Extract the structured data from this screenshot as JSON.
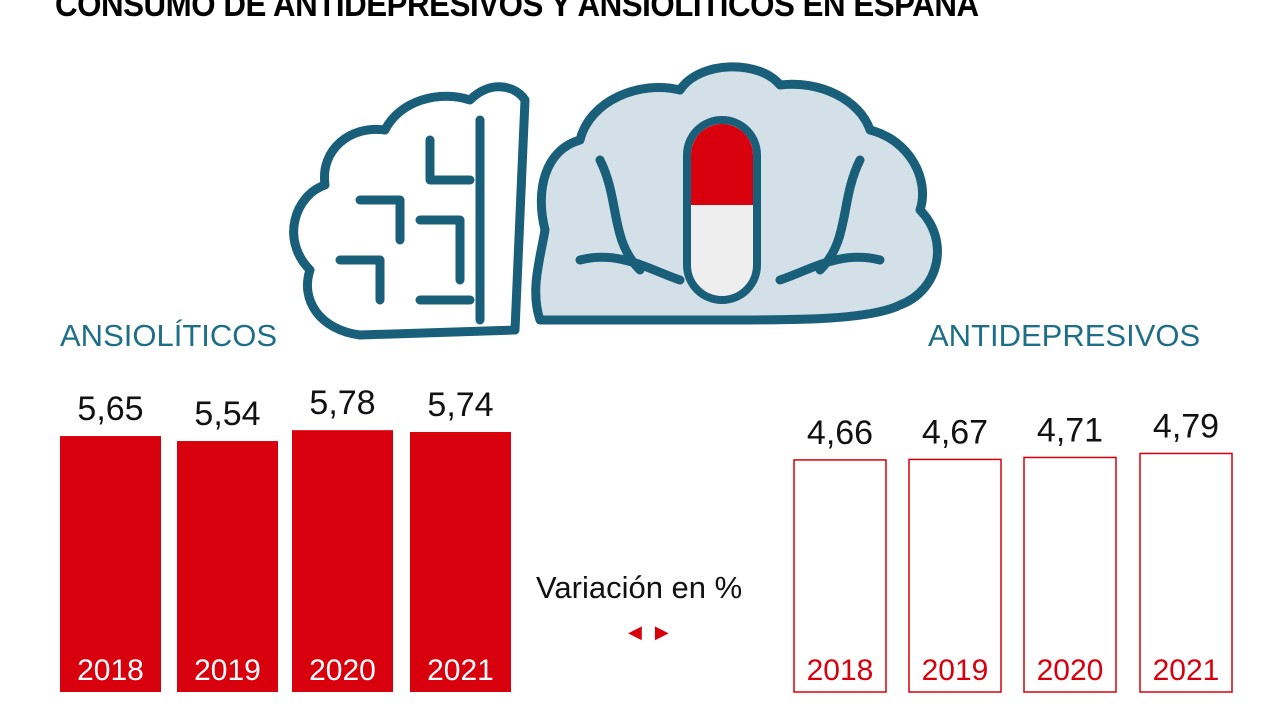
{
  "title": "CONSUMO DE ANTIDEPRESIVOS Y ANSIOLÍTICOS EN ESPAÑA",
  "variation_label": "Variación en %",
  "arrows": "◀ ▶",
  "colors": {
    "red": "#d9000d",
    "teal": "#1f6e87",
    "brain_fill": "#d3e0e8"
  },
  "chart_data": [
    {
      "type": "bar",
      "title": "ANSIOLÍTICOS",
      "style": "filled",
      "categories": [
        "2018",
        "2019",
        "2020",
        "2021"
      ],
      "values": [
        5.65,
        5.54,
        5.78,
        5.74
      ],
      "labels": [
        "5,65",
        "5,54",
        "5,78",
        "5,74"
      ]
    },
    {
      "type": "bar",
      "title": "ANTIDEPRESIVOS",
      "style": "outline",
      "categories": [
        "2018",
        "2019",
        "2020",
        "2021"
      ],
      "values": [
        4.66,
        4.67,
        4.71,
        4.79
      ],
      "labels": [
        "4,66",
        "4,67",
        "4,71",
        "4,79"
      ]
    }
  ]
}
